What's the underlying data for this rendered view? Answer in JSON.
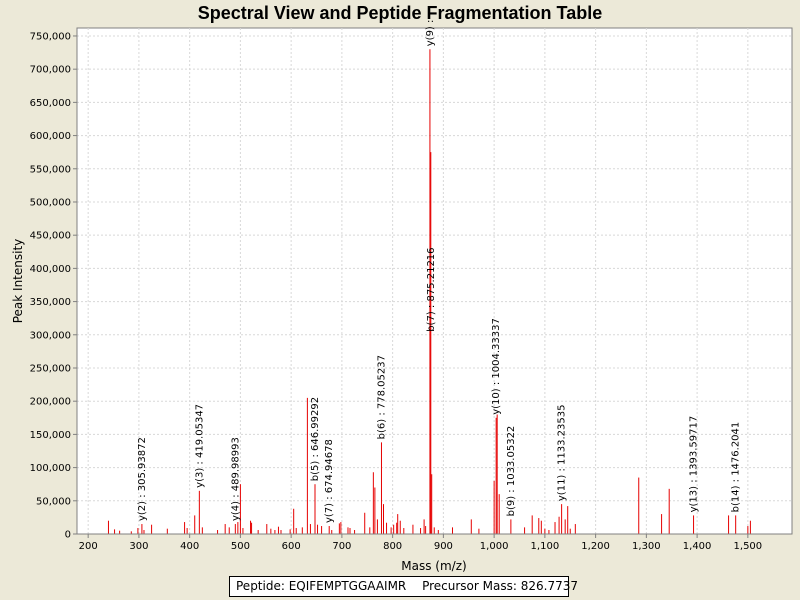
{
  "chart_data": {
    "type": "bar",
    "title": "Spectral View and Peptide Fragmentation Table",
    "xlabel": "Mass (m/z)",
    "ylabel": "Peak Intensity",
    "xlim": [
      178,
      1587
    ],
    "ylim": [
      0,
      762000
    ],
    "x_ticks": [
      200,
      300,
      400,
      500,
      600,
      700,
      800,
      900,
      1000,
      1100,
      1200,
      1300,
      1400,
      1500
    ],
    "x_tick_labels": [
      "200",
      "300",
      "400",
      "500",
      "600",
      "700",
      "800",
      "900",
      "1,000",
      "1,100",
      "1,200",
      "1,300",
      "1,400",
      "1,500"
    ],
    "y_ticks": [
      0,
      50000,
      100000,
      150000,
      200000,
      250000,
      300000,
      350000,
      400000,
      450000,
      500000,
      550000,
      600000,
      650000,
      700000,
      750000
    ],
    "y_tick_labels": [
      "0",
      "50,000",
      "100,000",
      "150,000",
      "200,000",
      "250,000",
      "300,000",
      "350,000",
      "400,000",
      "450,000",
      "500,000",
      "550,000",
      "600,000",
      "650,000",
      "700,000",
      "750,000"
    ],
    "grid": true,
    "peak_color": "#e60000",
    "peaks": [
      [
        240,
        20000
      ],
      [
        252,
        7000
      ],
      [
        262,
        5000
      ],
      [
        285,
        4000
      ],
      [
        298,
        9000
      ],
      [
        305.9,
        15000
      ],
      [
        310,
        6000
      ],
      [
        325,
        14000
      ],
      [
        356,
        8000
      ],
      [
        390,
        18000
      ],
      [
        395,
        9000
      ],
      [
        410,
        28000
      ],
      [
        419.1,
        65000
      ],
      [
        425,
        10000
      ],
      [
        455,
        6000
      ],
      [
        470,
        15000
      ],
      [
        478,
        10000
      ],
      [
        490,
        15000
      ],
      [
        495,
        18000
      ],
      [
        500,
        75000
      ],
      [
        505,
        9000
      ],
      [
        520,
        20000
      ],
      [
        522,
        17000
      ],
      [
        535,
        6000
      ],
      [
        552,
        15000
      ],
      [
        560,
        8000
      ],
      [
        568,
        6000
      ],
      [
        575,
        11000
      ],
      [
        580,
        6000
      ],
      [
        598,
        7000
      ],
      [
        605,
        38000
      ],
      [
        610,
        9000
      ],
      [
        622,
        10000
      ],
      [
        632,
        205000
      ],
      [
        638,
        15000
      ],
      [
        647,
        75000
      ],
      [
        652,
        14000
      ],
      [
        660,
        12000
      ],
      [
        675,
        12000
      ],
      [
        680,
        6000
      ],
      [
        695,
        16000
      ],
      [
        698,
        18000
      ],
      [
        712,
        10000
      ],
      [
        716,
        9000
      ],
      [
        725,
        6000
      ],
      [
        745,
        32000
      ],
      [
        755,
        10000
      ],
      [
        762,
        93000
      ],
      [
        765,
        70000
      ],
      [
        770,
        22000
      ],
      [
        778,
        138000
      ],
      [
        782,
        45000
      ],
      [
        788,
        17000
      ],
      [
        797,
        10000
      ],
      [
        802,
        14000
      ],
      [
        808,
        17000
      ],
      [
        810,
        30000
      ],
      [
        815,
        20000
      ],
      [
        822,
        9000
      ],
      [
        840,
        14000
      ],
      [
        855,
        9000
      ],
      [
        862,
        22000
      ],
      [
        865,
        12000
      ],
      [
        873.5,
        730000
      ],
      [
        875.2,
        575000
      ],
      [
        877,
        90000
      ],
      [
        882,
        10000
      ],
      [
        890,
        6000
      ],
      [
        918,
        10000
      ],
      [
        955,
        22000
      ],
      [
        970,
        8000
      ],
      [
        1000,
        80000
      ],
      [
        1004,
        175000
      ],
      [
        1006,
        180000
      ],
      [
        1010,
        60000
      ],
      [
        1033,
        22000
      ],
      [
        1060,
        10000
      ],
      [
        1075,
        28000
      ],
      [
        1088,
        24000
      ],
      [
        1093,
        20000
      ],
      [
        1100,
        8000
      ],
      [
        1108,
        6000
      ],
      [
        1120,
        18000
      ],
      [
        1128,
        26000
      ],
      [
        1133,
        45000
      ],
      [
        1140,
        22000
      ],
      [
        1145,
        42000
      ],
      [
        1150,
        8000
      ],
      [
        1160,
        15000
      ],
      [
        1285,
        85000
      ],
      [
        1330,
        30000
      ],
      [
        1345,
        68000
      ],
      [
        1393,
        28000
      ],
      [
        1462,
        28000
      ],
      [
        1476,
        28000
      ],
      [
        1500,
        12000
      ],
      [
        1505,
        20000
      ]
    ],
    "annotations": [
      {
        "label": "y(2) : 305.93872",
        "x": 305.9,
        "y": 15000
      },
      {
        "label": "y(3) : 419.05347",
        "x": 419.1,
        "y": 65000
      },
      {
        "label": "y(4) : 489.98993",
        "x": 490,
        "y": 15000
      },
      {
        "label": "b(5) : 646.99292",
        "x": 647,
        "y": 75000
      },
      {
        "label": "y(7) : 674.94678",
        "x": 675,
        "y": 12000
      },
      {
        "label": "b(6) : 778.05237",
        "x": 778,
        "y": 138000
      },
      {
        "label": "y(9) : ",
        "x": 873.5,
        "y": 730000
      },
      {
        "label": "b(7) : 875.21216",
        "x": 875.2,
        "y": 300000
      },
      {
        "label": "y(10) : 1004.33337",
        "x": 1004,
        "y": 175000
      },
      {
        "label": "b(9) : 1033.05322",
        "x": 1033,
        "y": 22000
      },
      {
        "label": "y(11) : 1133.23535",
        "x": 1133,
        "y": 45000
      },
      {
        "label": "y(13) : 1393.59717",
        "x": 1393,
        "y": 28000
      },
      {
        "label": "b(14) : 1476.2041",
        "x": 1476,
        "y": 28000
      }
    ]
  },
  "info": {
    "peptide": "Peptide: EQIFEMPTGGAAIMR",
    "precursor": "Precursor Mass: 826.7737"
  }
}
